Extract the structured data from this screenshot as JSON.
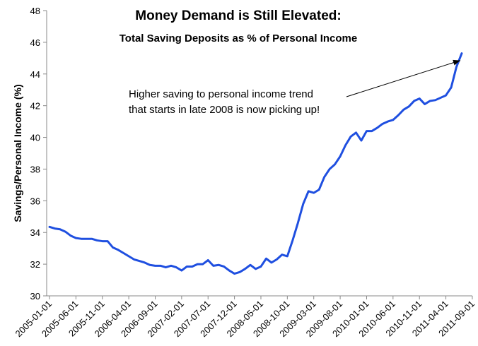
{
  "chart_data": {
    "type": "line",
    "title": "Money Demand is Still Elevated:",
    "subtitle": "Total Saving Deposits as % of Personal Income",
    "xlabel": "",
    "ylabel": "Savings/Personal Income (%)",
    "ylim": [
      30,
      48
    ],
    "yticks": [
      30,
      32,
      34,
      36,
      38,
      40,
      42,
      44,
      46,
      48
    ],
    "grid": false,
    "xtick_labels": [
      "2005-01-01",
      "2005-06-01",
      "2005-11-01",
      "2006-04-01",
      "2006-09-01",
      "2007-02-01",
      "2007-07-01",
      "2007-12-01",
      "2008-05-01",
      "2008-10-01",
      "2009-03-01",
      "2009-08-01",
      "2010-01-01",
      "2010-06-01",
      "2010-11-01",
      "2011-04-01",
      "2011-09-01"
    ],
    "annotation": {
      "lines": [
        "Higher saving  to personal income  trend",
        "that starts in late 2008 is now picking up!"
      ],
      "points_to": "2011-07-01"
    },
    "series": [
      {
        "name": "Savings/Personal Income",
        "color": "#1f4fe0",
        "start": "2005-01",
        "values": [
          34.35,
          34.25,
          34.2,
          34.05,
          33.8,
          33.65,
          33.6,
          33.6,
          33.6,
          33.5,
          33.45,
          33.45,
          33.05,
          32.9,
          32.7,
          32.5,
          32.3,
          32.2,
          32.1,
          31.95,
          31.9,
          31.9,
          31.8,
          31.9,
          31.8,
          31.6,
          31.85,
          31.85,
          32.0,
          32.0,
          32.25,
          31.9,
          31.95,
          31.85,
          31.6,
          31.4,
          31.5,
          31.7,
          31.95,
          31.7,
          31.85,
          32.35,
          32.1,
          32.3,
          32.6,
          32.5,
          33.5,
          34.6,
          35.8,
          36.6,
          36.5,
          36.7,
          37.5,
          38.0,
          38.3,
          38.8,
          39.5,
          40.05,
          40.3,
          39.8,
          40.4,
          40.4,
          40.6,
          40.85,
          41.0,
          41.1,
          41.4,
          41.75,
          41.95,
          42.3,
          42.45,
          42.1,
          42.3,
          42.35,
          42.5,
          42.65,
          43.15,
          44.45,
          45.3
        ]
      }
    ]
  }
}
